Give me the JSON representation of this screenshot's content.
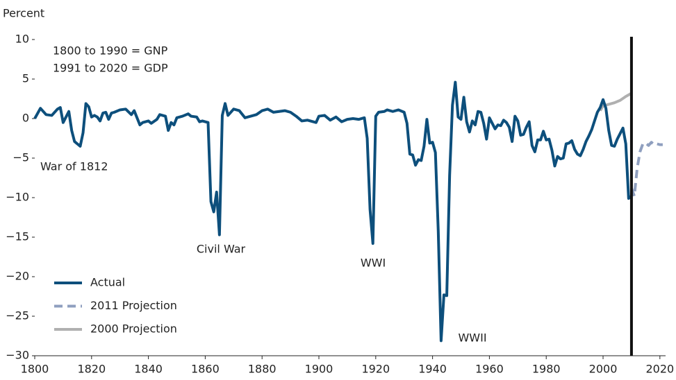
{
  "chart_data": {
    "type": "line",
    "y_label": "Percent",
    "annotations": [
      "1800 to 1990 = GNP",
      "1991 to 2020 = GDP",
      "War of 1812",
      "Civil War",
      "WWI",
      "WWII"
    ],
    "xlim": [
      1800,
      2022
    ],
    "ylim": [
      -30,
      10
    ],
    "xticks": [
      1800,
      1820,
      1840,
      1860,
      1880,
      1900,
      1920,
      1940,
      1960,
      1980,
      2000,
      2020
    ],
    "yticks": [
      {
        "value": -30,
        "label": "−30"
      },
      {
        "value": -25,
        "label": "−25"
      },
      {
        "value": -20,
        "label": "−20"
      },
      {
        "value": -15,
        "label": "−15"
      },
      {
        "value": -10,
        "label": "−10"
      },
      {
        "value": -5,
        "label": "−5"
      },
      0,
      5,
      10
    ],
    "vertical_line_x": 2010,
    "legend": "lower left",
    "series": [
      {
        "name": "Actual",
        "color": "#0d4f7c",
        "dash": false,
        "x": [
          1800,
          1802,
          1804,
          1806,
          1808,
          1809,
          1810,
          1812,
          1813,
          1814,
          1815,
          1816,
          1817,
          1818,
          1819,
          1820,
          1821,
          1822,
          1823,
          1824,
          1825,
          1826,
          1827,
          1828,
          1830,
          1832,
          1834,
          1835,
          1837,
          1838,
          1840,
          1841,
          1843,
          1844,
          1846,
          1847,
          1848,
          1849,
          1850,
          1852,
          1854,
          1855,
          1857,
          1858,
          1859,
          1860,
          1861,
          1862,
          1863,
          1864,
          1865,
          1866,
          1867,
          1868,
          1870,
          1872,
          1874,
          1876,
          1878,
          1880,
          1882,
          1884,
          1886,
          1888,
          1890,
          1892,
          1894,
          1896,
          1898,
          1899,
          1900,
          1902,
          1904,
          1906,
          1908,
          1910,
          1912,
          1914,
          1916,
          1917,
          1918,
          1919,
          1920,
          1921,
          1923,
          1924,
          1926,
          1928,
          1930,
          1931,
          1932,
          1933,
          1934,
          1935,
          1936,
          1937,
          1938,
          1939,
          1940,
          1941,
          1942,
          1943,
          1944,
          1945,
          1946,
          1947,
          1948,
          1949,
          1950,
          1951,
          1952,
          1953,
          1954,
          1955,
          1956,
          1957,
          1958,
          1959,
          1960,
          1961,
          1962,
          1963,
          1964,
          1965,
          1966,
          1967,
          1968,
          1969,
          1970,
          1971,
          1972,
          1973,
          1974,
          1975,
          1976,
          1977,
          1978,
          1979,
          1980,
          1981,
          1982,
          1983,
          1984,
          1985,
          1986,
          1987,
          1988,
          1989,
          1990,
          1991,
          1992,
          1993,
          1994,
          1995,
          1996,
          1997,
          1998,
          1999,
          2000,
          2001,
          2002,
          2003,
          2004,
          2005,
          2006,
          2007,
          2008,
          2009,
          2010
        ],
        "values": [
          0,
          1.3,
          0.5,
          0.4,
          1.2,
          1.4,
          -0.5,
          0.9,
          -1.5,
          -2.9,
          -3.2,
          -3.5,
          -1.8,
          1.9,
          1.5,
          0.2,
          0.4,
          0.2,
          -0.3,
          0.7,
          0.8,
          -0.1,
          0.7,
          0.8,
          1.1,
          1.2,
          0.5,
          1.0,
          -0.8,
          -0.5,
          -0.3,
          -0.6,
          -0.1,
          0.5,
          0.3,
          -1.5,
          -0.5,
          -0.8,
          0.1,
          0.3,
          0.6,
          0.3,
          0.2,
          -0.4,
          -0.3,
          -0.4,
          -0.5,
          -10.5,
          -11.8,
          -9.3,
          -14.7,
          0.4,
          1.9,
          0.4,
          1.2,
          1.0,
          0.1,
          0.3,
          0.5,
          1.0,
          1.2,
          0.8,
          0.9,
          1.0,
          0.8,
          0.3,
          -0.3,
          -0.2,
          -0.4,
          -0.5,
          0.3,
          0.4,
          -0.2,
          0.2,
          -0.4,
          -0.1,
          0.0,
          -0.1,
          0.1,
          -2.5,
          -11.5,
          -15.8,
          0.3,
          0.8,
          0.9,
          1.1,
          0.9,
          1.1,
          0.8,
          -0.6,
          -4.5,
          -4.6,
          -5.9,
          -5.2,
          -5.3,
          -3.5,
          -0.1,
          -3.1,
          -3.0,
          -4.3,
          -14.2,
          -28.1,
          -22.3,
          -22.4,
          -7.2,
          1.7,
          4.6,
          0.2,
          -0.1,
          2.7,
          -0.4,
          -1.7,
          -0.3,
          -0.8,
          0.9,
          0.8,
          -0.6,
          -2.6,
          0.1,
          -0.6,
          -1.3,
          -0.8,
          -0.9,
          -0.2,
          -0.5,
          -1.1,
          -2.9,
          0.3,
          -0.3,
          -2.1,
          -2.0,
          -1.1,
          -0.4,
          -3.4,
          -4.2,
          -2.7,
          -2.7,
          -1.6,
          -2.7,
          -2.6,
          -4.0,
          -6.0,
          -4.8,
          -5.1,
          -5.0,
          -3.2,
          -3.1,
          -2.8,
          -3.9,
          -4.5,
          -4.7,
          -3.9,
          -2.9,
          -2.2,
          -1.4,
          -0.3,
          0.8,
          1.4,
          2.4,
          1.3,
          -1.5,
          -3.4,
          -3.5,
          -2.6,
          -1.9,
          -1.2,
          -3.2,
          -10.1,
          -9.8
        ]
      },
      {
        "name": "2011 Projection",
        "color": "#8f9fbf",
        "dash": true,
        "x": [
          2010,
          2011,
          2012,
          2013,
          2014,
          2015,
          2016,
          2017,
          2018,
          2019,
          2020,
          2021
        ],
        "values": [
          -8.8,
          -9.8,
          -6.3,
          -4.2,
          -3.2,
          -3.1,
          -3.4,
          -3.0,
          -3.3,
          -3.2,
          -3.3,
          -3.3
        ]
      },
      {
        "name": "2000 Projection",
        "color": "#b0b0b0",
        "dash": false,
        "x": [
          1999,
          2000,
          2002,
          2004,
          2006,
          2008,
          2010
        ],
        "values": [
          1.0,
          1.6,
          1.8,
          2.0,
          2.3,
          2.8,
          3.2
        ]
      }
    ]
  }
}
